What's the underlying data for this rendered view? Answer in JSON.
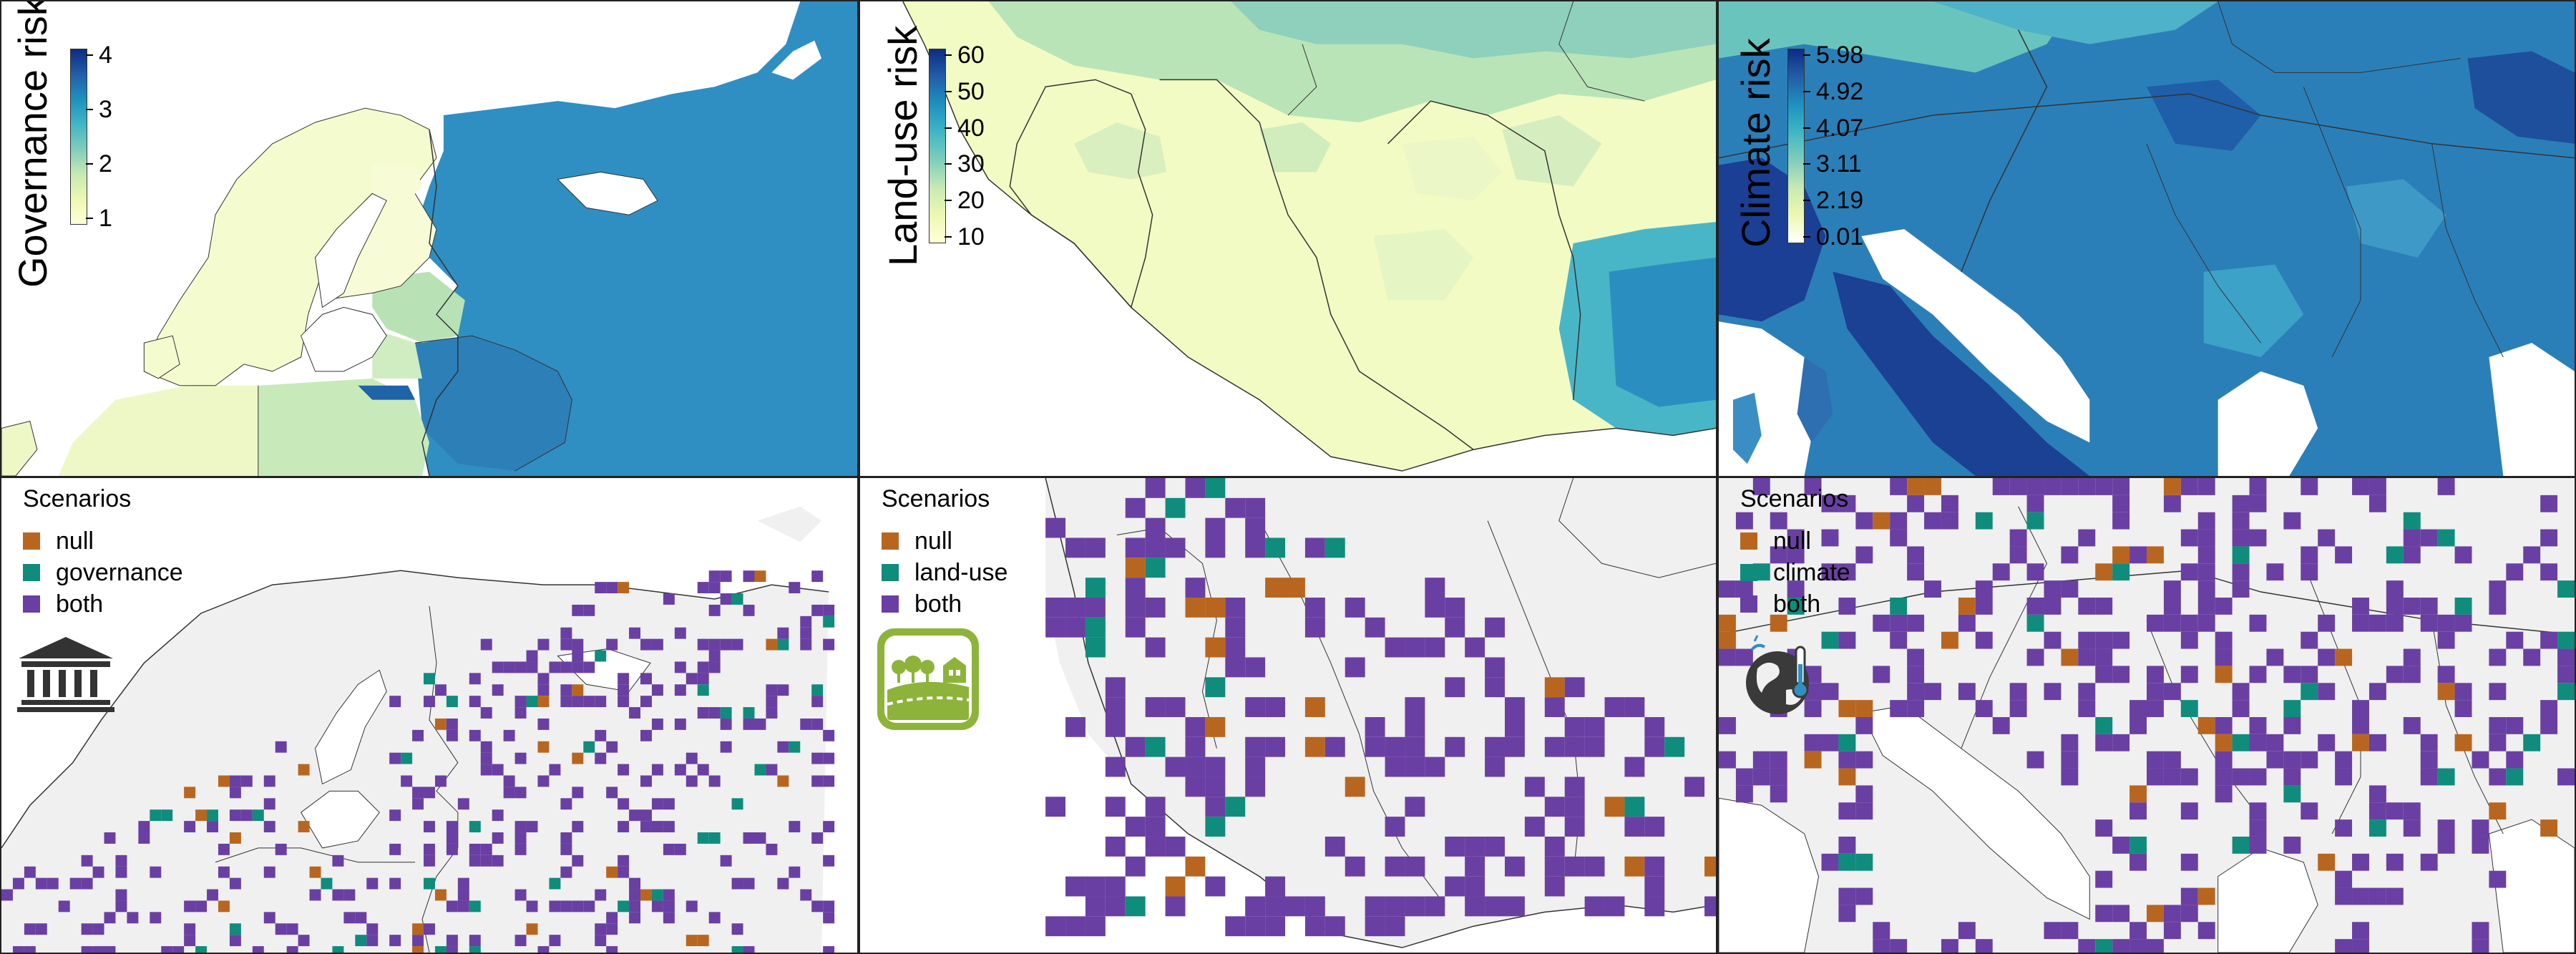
{
  "colors": {
    "null": "#b8661f",
    "governance": "#0f8c7c",
    "land_use": "#0f8c7c",
    "climate": "#0f8c7c",
    "both": "#6a3fa3",
    "land_bg": "#f0f0f0",
    "sea": "#ffffff",
    "border": "#333333"
  },
  "top_row": {
    "governance": {
      "axis_label": "Governance risk",
      "ticks": [
        "4",
        "3",
        "2",
        "1"
      ],
      "range": [
        1,
        4.3
      ]
    },
    "land_use": {
      "axis_label": "Land-use risk",
      "ticks": [
        "60",
        "50",
        "40",
        "30",
        "20",
        "10"
      ],
      "range": [
        5,
        62
      ]
    },
    "climate": {
      "axis_label": "Climate risk",
      "ticks": [
        "5.98",
        "4.92",
        "4.07",
        "3.11",
        "2.19",
        "0.01"
      ],
      "range": [
        0.01,
        5.98
      ]
    }
  },
  "bottom_row": {
    "governance": {
      "legend_title": "Scenarios",
      "items": [
        "null",
        "governance",
        "both"
      ],
      "icon": "institution-icon"
    },
    "land_use": {
      "legend_title": "Scenarios",
      "items": [
        "null",
        "land-use",
        "both"
      ],
      "icon": "landscape-icon"
    },
    "climate": {
      "legend_title": "Scenarios",
      "items": [
        "null",
        "climate",
        "both"
      ],
      "icon": "globe-thermometer-icon"
    }
  }
}
